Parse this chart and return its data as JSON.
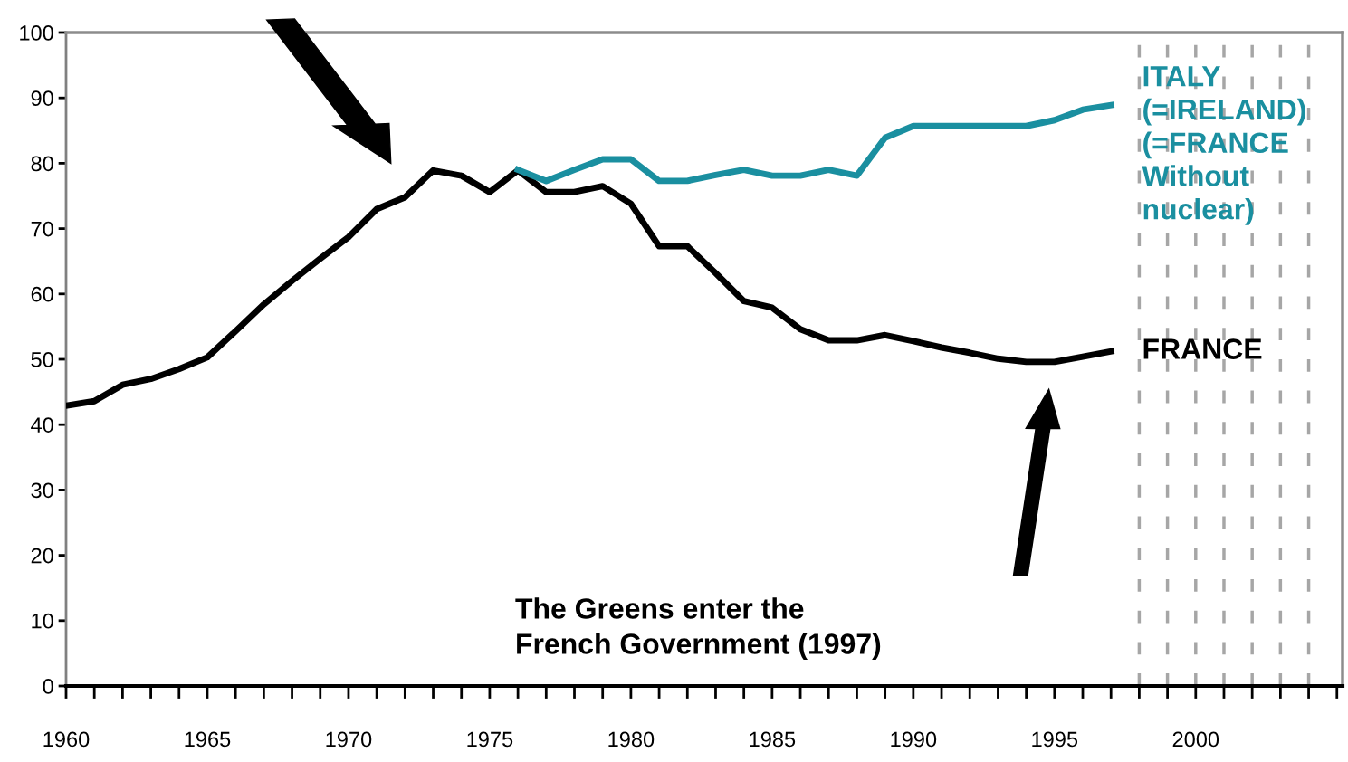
{
  "chart_data": {
    "type": "line",
    "x": [
      1960,
      1961,
      1962,
      1963,
      1964,
      1965,
      1966,
      1967,
      1968,
      1969,
      1970,
      1971,
      1972,
      1973,
      1974,
      1975,
      1976,
      1977,
      1978,
      1979,
      1980,
      1981,
      1982,
      1983,
      1984,
      1985,
      1986,
      1987,
      1988,
      1989,
      1990,
      1991,
      1992,
      1993,
      1994,
      1995,
      1996,
      1997
    ],
    "series": [
      {
        "name": "FRANCE",
        "color": "#000000",
        "values": [
          42.9,
          43.6,
          46.1,
          47,
          48.5,
          50.3,
          54.3,
          58.4,
          62,
          65.4,
          68.7,
          73,
          74.8,
          78.9,
          78.1,
          75.6,
          78.9,
          75.6,
          75.6,
          76.5,
          73.8,
          67.3,
          67.3,
          63.2,
          58.9,
          57.9,
          54.6,
          52.9,
          52.9,
          53.7,
          52.8,
          51.8,
          51,
          50.1,
          49.6,
          49.6,
          50.4,
          51.2
        ]
      },
      {
        "name": "ITALY\n(=IRELAND)\n(=FRANCE\nWithout\nnuclear)",
        "color": "#1a8fa0",
        "x": [
          1976,
          1977,
          1978,
          1979,
          1980,
          1981,
          1982,
          1983,
          1984,
          1985,
          1986,
          1987,
          1988,
          1989,
          1990,
          1991,
          1992,
          1993,
          1994,
          1995,
          1996,
          1997
        ],
        "values": [
          79,
          77.3,
          79,
          80.6,
          80.6,
          77.3,
          77.3,
          78.2,
          79,
          78.1,
          78.1,
          79,
          78.1,
          83.9,
          85.7,
          85.7,
          85.7,
          85.7,
          85.7,
          86.6,
          88.2,
          88.9
        ]
      }
    ],
    "xlim": [
      1960,
      2005.2
    ],
    "xticks": [
      1960,
      {
        "value": 1961,
        "label": null
      },
      {
        "value": 1962,
        "label": null
      },
      {
        "value": 1963,
        "label": null
      },
      {
        "value": 1964,
        "label": null
      },
      1965,
      {
        "value": 1966,
        "label": null
      },
      {
        "value": 1967,
        "label": null
      },
      {
        "value": 1968,
        "label": null
      },
      {
        "value": 1969,
        "label": null
      },
      1970,
      {
        "value": 1971,
        "label": null
      },
      {
        "value": 1972,
        "label": null
      },
      {
        "value": 1973,
        "label": null
      },
      {
        "value": 1974,
        "label": null
      },
      1975,
      {
        "value": 1976,
        "label": null
      },
      {
        "value": 1977,
        "label": null
      },
      {
        "value": 1978,
        "label": null
      },
      {
        "value": 1979,
        "label": null
      },
      1980,
      {
        "value": 1981,
        "label": null
      },
      {
        "value": 1982,
        "label": null
      },
      {
        "value": 1983,
        "label": null
      },
      {
        "value": 1984,
        "label": null
      },
      1985,
      {
        "value": 1986,
        "label": null
      },
      {
        "value": 1987,
        "label": null
      },
      {
        "value": 1988,
        "label": null
      },
      {
        "value": 1989,
        "label": null
      },
      1990,
      {
        "value": 1991,
        "label": null
      },
      {
        "value": 1992,
        "label": null
      },
      {
        "value": 1993,
        "label": null
      },
      {
        "value": 1994,
        "label": null
      },
      1995,
      {
        "value": 1996,
        "label": null
      },
      {
        "value": 1997,
        "label": null
      },
      {
        "value": 1998,
        "label": null
      },
      {
        "value": 1999,
        "label": null
      },
      2000,
      {
        "value": 2001,
        "label": null
      },
      {
        "value": 2002,
        "label": null
      },
      {
        "value": 2003,
        "label": null
      },
      {
        "value": 2004,
        "label": null
      },
      {
        "value": 2005,
        "label": null
      }
    ],
    "ylim": [
      0,
      100
    ],
    "yticks": [
      0,
      10,
      20,
      30,
      40,
      50,
      60,
      70,
      80,
      90,
      100
    ],
    "grid": false,
    "legend": false,
    "marker": "none",
    "line_style": "solid",
    "ref_lines": [
      {
        "axis": "x",
        "value": 1998,
        "color": "#a6a6a6",
        "line_style": "dashed"
      },
      {
        "axis": "x",
        "value": 1999,
        "color": "#a6a6a6",
        "line_style": "dashed"
      },
      {
        "axis": "x",
        "value": 2000,
        "color": "#a6a6a6",
        "line_style": "dashed"
      },
      {
        "axis": "x",
        "value": 2001,
        "color": "#a6a6a6",
        "line_style": "dashed"
      },
      {
        "axis": "x",
        "value": 2002,
        "color": "#a6a6a6",
        "line_style": "dashed"
      },
      {
        "axis": "x",
        "value": 2003,
        "color": "#a6a6a6",
        "line_style": "dashed"
      },
      {
        "axis": "x",
        "value": 2004,
        "color": "#a6a6a6",
        "line_style": "dashed"
      }
    ],
    "annotations": [
      "The Greens enter the\nFrench Government (1997)"
    ]
  }
}
